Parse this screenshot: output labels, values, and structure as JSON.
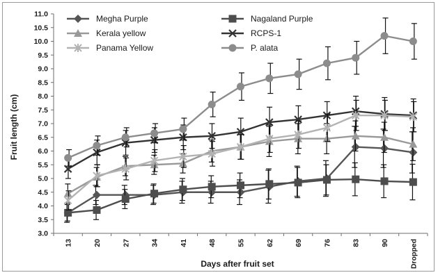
{
  "chart_data": {
    "type": "line",
    "title": "",
    "xlabel": "Days after fruit set",
    "ylabel": "Fruit length (cm)",
    "categories": [
      "13",
      "20",
      "27",
      "34",
      "41",
      "48",
      "55",
      "62",
      "69",
      "76",
      "83",
      "90",
      "Dropped"
    ],
    "ylim": [
      3.0,
      11.0
    ],
    "ytick_step": 0.5,
    "yticks": [
      "3.0",
      "3.5",
      "4.0",
      "4.5",
      "5.0",
      "5.5",
      "6.0",
      "6.5",
      "7.0",
      "7.5",
      "8.0",
      "8.5",
      "9.0",
      "9.5",
      "10.0",
      "10.5",
      "11.0"
    ],
    "grid": false,
    "error_bars": true,
    "legend_placement": "top-left, 3 rows x 2 columns",
    "series": [
      {
        "name": "Megha Purple",
        "color": "#555555",
        "marker": "diamond",
        "values": [
          3.75,
          4.4,
          4.4,
          4.4,
          4.5,
          4.5,
          4.5,
          4.7,
          4.9,
          5.0,
          6.15,
          6.1,
          5.95
        ],
        "errors": [
          0.35,
          0.35,
          0.35,
          0.35,
          0.4,
          0.4,
          0.45,
          0.6,
          0.55,
          0.65,
          0.75,
          0.7,
          0.75
        ]
      },
      {
        "name": "Nagaland Purple",
        "color": "#4d4d4d",
        "marker": "square",
        "values": [
          3.75,
          3.85,
          4.25,
          4.45,
          4.6,
          4.7,
          4.75,
          4.8,
          4.85,
          4.95,
          4.97,
          4.9,
          4.87
        ],
        "errors": [
          0.3,
          0.35,
          0.35,
          0.35,
          0.4,
          0.4,
          0.45,
          0.55,
          0.55,
          0.55,
          0.6,
          0.6,
          0.65
        ]
      },
      {
        "name": "Kerala yellow",
        "color": "#999999",
        "marker": "triangle",
        "values": [
          4.45,
          5.05,
          5.45,
          5.5,
          5.55,
          6.0,
          6.15,
          6.35,
          6.45,
          6.45,
          6.55,
          6.5,
          6.25
        ],
        "errors": [
          0.35,
          0.35,
          0.35,
          0.35,
          0.35,
          0.4,
          0.45,
          0.55,
          0.55,
          0.55,
          0.55,
          0.55,
          0.6
        ]
      },
      {
        "name": "RCPS-1",
        "color": "#333333",
        "marker": "x",
        "values": [
          5.35,
          5.95,
          6.3,
          6.4,
          6.5,
          6.55,
          6.7,
          7.05,
          7.15,
          7.3,
          7.45,
          7.35,
          7.3
        ],
        "errors": [
          0.35,
          0.45,
          0.45,
          0.45,
          0.45,
          0.45,
          0.5,
          0.55,
          0.5,
          0.5,
          0.55,
          0.6,
          0.6
        ]
      },
      {
        "name": "Panama Yellow",
        "color": "#b3b3b3",
        "marker": "star",
        "values": [
          4.2,
          5.1,
          5.35,
          5.65,
          5.8,
          5.9,
          6.15,
          6.45,
          6.6,
          6.85,
          7.3,
          7.3,
          7.25
        ],
        "errors": [
          0.35,
          0.4,
          0.4,
          0.4,
          0.4,
          0.45,
          0.45,
          0.5,
          0.5,
          0.5,
          0.55,
          0.55,
          0.55
        ]
      },
      {
        "name": "P. alata",
        "color": "#8c8c8c",
        "marker": "circle",
        "values": [
          5.75,
          6.2,
          6.5,
          6.65,
          6.8,
          7.7,
          8.35,
          8.65,
          8.8,
          9.2,
          9.4,
          10.2,
          10.0
        ],
        "errors": [
          0.3,
          0.35,
          0.35,
          0.35,
          0.4,
          0.45,
          0.5,
          0.55,
          0.55,
          0.6,
          0.6,
          0.65,
          0.65
        ]
      }
    ]
  }
}
